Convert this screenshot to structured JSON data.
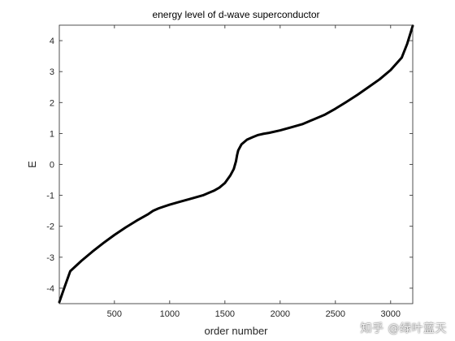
{
  "chart_data": {
    "type": "line",
    "title": "energy level of d-wave superconductor",
    "xlabel": "order number",
    "ylabel": "E",
    "xlim": [
      1,
      3200
    ],
    "ylim": [
      -4.5,
      4.5
    ],
    "xticks": [
      500,
      1000,
      1500,
      2000,
      2500,
      3000
    ],
    "yticks": [
      -4,
      -3,
      -2,
      -1,
      0,
      1,
      2,
      3,
      4
    ],
    "grid": false,
    "line_color": "#000000",
    "series": [
      {
        "x": [
          1,
          50,
          100,
          200,
          300,
          400,
          500,
          600,
          700,
          800,
          850,
          900,
          1000,
          1100,
          1200,
          1300,
          1400,
          1450,
          1500,
          1550,
          1580,
          1600,
          1610,
          1620,
          1650,
          1700,
          1750,
          1800,
          1850,
          1900,
          2000,
          2100,
          2200,
          2300,
          2400,
          2500,
          2600,
          2700,
          2800,
          2900,
          3000,
          3100,
          3150,
          3200
        ],
        "y": [
          -4.45,
          -3.95,
          -3.45,
          -3.12,
          -2.82,
          -2.54,
          -2.28,
          -2.04,
          -1.82,
          -1.62,
          -1.5,
          -1.42,
          -1.3,
          -1.2,
          -1.1,
          -1.0,
          -0.85,
          -0.75,
          -0.6,
          -0.35,
          -0.15,
          0.1,
          0.3,
          0.45,
          0.65,
          0.8,
          0.88,
          0.95,
          0.99,
          1.02,
          1.1,
          1.2,
          1.3,
          1.45,
          1.6,
          1.8,
          2.02,
          2.25,
          2.5,
          2.75,
          3.05,
          3.45,
          3.9,
          4.48
        ]
      }
    ]
  },
  "watermark": "知乎 @绿叶蓝天"
}
